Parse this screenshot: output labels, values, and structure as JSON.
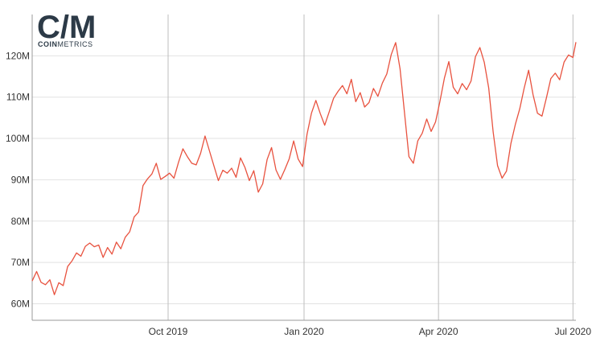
{
  "logo": {
    "mark": "C/M",
    "text_bold": "COIN",
    "text_light": "METRICS"
  },
  "chart_data": {
    "type": "line",
    "title": "",
    "xlabel": "",
    "ylabel": "",
    "x_ticks": [
      {
        "label": "Oct 2019",
        "date": "2019-10-01"
      },
      {
        "label": "Jan 2020",
        "date": "2020-01-01"
      },
      {
        "label": "Apr 2020",
        "date": "2020-04-01"
      },
      {
        "label": "Jul 2020",
        "date": "2020-07-01"
      }
    ],
    "y_ticks": [
      "60M",
      "70M",
      "80M",
      "90M",
      "100M",
      "110M",
      "120M"
    ],
    "ylim": [
      56000000,
      130000000
    ],
    "xlim": [
      "2019-07-01",
      "2020-07-03"
    ],
    "grid": true,
    "color": "#e8523f",
    "series": [
      {
        "points": [
          [
            "2019-07-01",
            65.5
          ],
          [
            "2019-07-04",
            67.8
          ],
          [
            "2019-07-07",
            65.2
          ],
          [
            "2019-07-10",
            64.6
          ],
          [
            "2019-07-13",
            65.8
          ],
          [
            "2019-07-16",
            62.2
          ],
          [
            "2019-07-19",
            65.1
          ],
          [
            "2019-07-22",
            64.4
          ],
          [
            "2019-07-25",
            69.0
          ],
          [
            "2019-07-28",
            70.4
          ],
          [
            "2019-07-31",
            72.3
          ],
          [
            "2019-08-03",
            71.5
          ],
          [
            "2019-08-06",
            73.9
          ],
          [
            "2019-08-09",
            74.7
          ],
          [
            "2019-08-12",
            73.8
          ],
          [
            "2019-08-15",
            74.2
          ],
          [
            "2019-08-18",
            71.2
          ],
          [
            "2019-08-21",
            73.6
          ],
          [
            "2019-08-24",
            72.0
          ],
          [
            "2019-08-27",
            74.9
          ],
          [
            "2019-08-30",
            73.3
          ],
          [
            "2019-09-02",
            76.1
          ],
          [
            "2019-09-05",
            77.4
          ],
          [
            "2019-09-08",
            81.0
          ],
          [
            "2019-09-11",
            82.2
          ],
          [
            "2019-09-14",
            88.6
          ],
          [
            "2019-09-17",
            90.2
          ],
          [
            "2019-09-20",
            91.4
          ],
          [
            "2019-09-23",
            94.0
          ],
          [
            "2019-09-26",
            90.1
          ],
          [
            "2019-09-29",
            90.8
          ],
          [
            "2019-10-02",
            91.6
          ],
          [
            "2019-10-05",
            90.4
          ],
          [
            "2019-10-08",
            94.2
          ],
          [
            "2019-10-11",
            97.5
          ],
          [
            "2019-10-14",
            95.6
          ],
          [
            "2019-10-17",
            94.0
          ],
          [
            "2019-10-20",
            93.6
          ],
          [
            "2019-10-23",
            96.4
          ],
          [
            "2019-10-26",
            100.6
          ],
          [
            "2019-10-29",
            97.0
          ],
          [
            "2019-11-01",
            93.4
          ],
          [
            "2019-11-04",
            89.8
          ],
          [
            "2019-11-07",
            92.3
          ],
          [
            "2019-11-10",
            91.6
          ],
          [
            "2019-11-13",
            92.8
          ],
          [
            "2019-11-16",
            90.6
          ],
          [
            "2019-11-19",
            95.3
          ],
          [
            "2019-11-22",
            93.0
          ],
          [
            "2019-11-25",
            89.8
          ],
          [
            "2019-11-28",
            92.2
          ],
          [
            "2019-12-01",
            87.0
          ],
          [
            "2019-12-04",
            89.0
          ],
          [
            "2019-12-07",
            94.9
          ],
          [
            "2019-12-10",
            97.8
          ],
          [
            "2019-12-13",
            92.4
          ],
          [
            "2019-12-16",
            90.1
          ],
          [
            "2019-12-19",
            92.5
          ],
          [
            "2019-12-22",
            95.1
          ],
          [
            "2019-12-25",
            99.4
          ],
          [
            "2019-12-28",
            95.0
          ],
          [
            "2019-12-31",
            93.2
          ],
          [
            "2020-01-03",
            101.0
          ],
          [
            "2020-01-06",
            106.1
          ],
          [
            "2020-01-09",
            109.2
          ],
          [
            "2020-01-12",
            106.0
          ],
          [
            "2020-01-15",
            103.2
          ],
          [
            "2020-01-18",
            106.4
          ],
          [
            "2020-01-21",
            109.7
          ],
          [
            "2020-01-24",
            111.4
          ],
          [
            "2020-01-27",
            112.8
          ],
          [
            "2020-01-30",
            110.8
          ],
          [
            "2020-02-02",
            114.3
          ],
          [
            "2020-02-05",
            108.9
          ],
          [
            "2020-02-08",
            111.1
          ],
          [
            "2020-02-11",
            107.6
          ],
          [
            "2020-02-14",
            108.7
          ],
          [
            "2020-02-17",
            112.1
          ],
          [
            "2020-02-20",
            110.2
          ],
          [
            "2020-02-23",
            113.4
          ],
          [
            "2020-02-26",
            115.6
          ],
          [
            "2020-02-29",
            120.3
          ],
          [
            "2020-03-03",
            123.2
          ],
          [
            "2020-03-06",
            116.8
          ],
          [
            "2020-03-09",
            106.2
          ],
          [
            "2020-03-12",
            95.6
          ],
          [
            "2020-03-15",
            94.0
          ],
          [
            "2020-03-18",
            99.4
          ],
          [
            "2020-03-21",
            101.3
          ],
          [
            "2020-03-24",
            104.7
          ],
          [
            "2020-03-27",
            101.7
          ],
          [
            "2020-03-30",
            104.0
          ],
          [
            "2020-04-02",
            109.0
          ],
          [
            "2020-04-05",
            114.6
          ],
          [
            "2020-04-08",
            118.6
          ],
          [
            "2020-04-11",
            112.4
          ],
          [
            "2020-04-14",
            110.8
          ],
          [
            "2020-04-17",
            113.3
          ],
          [
            "2020-04-20",
            111.8
          ],
          [
            "2020-04-23",
            113.9
          ],
          [
            "2020-04-26",
            119.8
          ],
          [
            "2020-04-29",
            122.0
          ],
          [
            "2020-05-02",
            118.4
          ],
          [
            "2020-05-05",
            112.2
          ],
          [
            "2020-05-08",
            101.6
          ],
          [
            "2020-05-11",
            93.4
          ],
          [
            "2020-05-14",
            90.4
          ],
          [
            "2020-05-17",
            92.1
          ],
          [
            "2020-05-20",
            98.8
          ],
          [
            "2020-05-23",
            103.4
          ],
          [
            "2020-05-26",
            107.2
          ],
          [
            "2020-05-29",
            112.2
          ],
          [
            "2020-06-01",
            116.5
          ],
          [
            "2020-06-04",
            110.6
          ],
          [
            "2020-06-07",
            106.1
          ],
          [
            "2020-06-10",
            105.4
          ],
          [
            "2020-06-13",
            109.8
          ],
          [
            "2020-06-16",
            114.5
          ],
          [
            "2020-06-19",
            115.8
          ],
          [
            "2020-06-22",
            114.2
          ],
          [
            "2020-06-25",
            118.5
          ],
          [
            "2020-06-28",
            120.2
          ],
          [
            "2020-07-01",
            119.6
          ],
          [
            "2020-07-03",
            123.3
          ]
        ]
      }
    ]
  }
}
